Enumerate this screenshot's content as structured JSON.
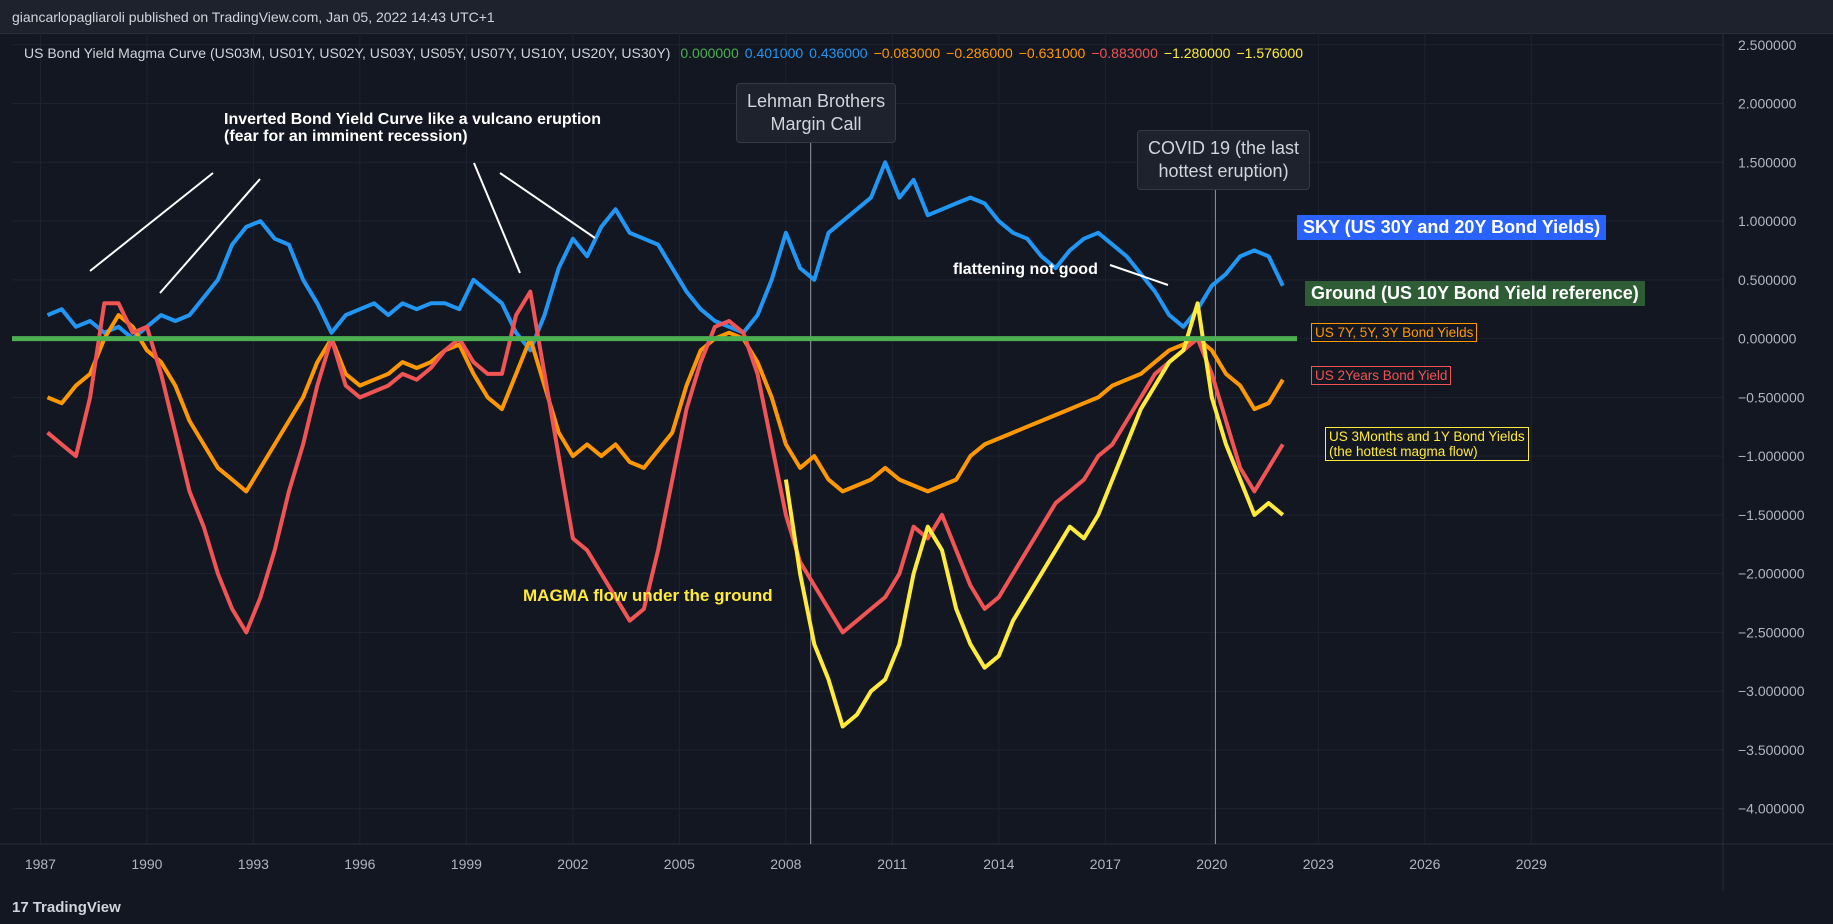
{
  "publisher": "giancarlopagliaroli published on TradingView.com, Jan 05, 2022 14:43 UTC+1",
  "footer": {
    "logo_mark": "17",
    "logo_text": "TradingView"
  },
  "legend": {
    "title": "US Bond Yield Magma Curve (US03M, US01Y, US02Y, US03Y, US05Y, US07Y, US10Y, US20Y, US30Y)",
    "values": [
      {
        "text": "0.000000",
        "color": "#4caf50"
      },
      {
        "text": "0.401000",
        "color": "#2196f3"
      },
      {
        "text": "0.436000",
        "color": "#2196f3"
      },
      {
        "text": "−0.083000",
        "color": "#ff9800"
      },
      {
        "text": "−0.286000",
        "color": "#ff9800"
      },
      {
        "text": "−0.631000",
        "color": "#ff9800"
      },
      {
        "text": "−0.883000",
        "color": "#f05454"
      },
      {
        "text": "−1.280000",
        "color": "#ffeb3b"
      },
      {
        "text": "−1.576000",
        "color": "#ffeb3b"
      }
    ]
  },
  "annotations": {
    "inverted": "Inverted Bond Yield Curve like a vulcano eruption",
    "inverted_sub": "(fear for an imminent recession)",
    "lehman_1": "Lehman Brothers",
    "lehman_2": "Margin Call",
    "covid_1": "COVID 19 (the last",
    "covid_2": "hottest eruption)",
    "flattening": "flattening not good",
    "magma": "MAGMA flow under the ground",
    "sky": "SKY (US 30Y and 20Y Bond Yields)",
    "ground": "Ground (US 10Y Bond Yield reference)",
    "mid_yields": "US 7Y, 5Y, 3Y Bond Yields",
    "two_year": "US 2Years Bond Yield",
    "short_1": "US 3Months and 1Y Bond Yields",
    "short_2": "(the hottest magma flow)"
  },
  "chart_data": {
    "type": "line",
    "x_ticks": [
      "1987",
      "1990",
      "1993",
      "1996",
      "1999",
      "2002",
      "2005",
      "2008",
      "2011",
      "2014",
      "2017",
      "2020",
      "2023",
      "2026",
      "2029"
    ],
    "y_ticks": [
      "2.500000",
      "2.000000",
      "1.500000",
      "1.000000",
      "0.500000",
      "0.000000",
      "−0.500000",
      "−1.000000",
      "−1.500000",
      "−2.000000",
      "−2.500000",
      "−3.000000",
      "−3.500000",
      "−4.000000"
    ],
    "xlim": [
      1986.2,
      2034.4
    ],
    "ylim": [
      -4.3,
      2.6
    ],
    "vlines": [
      2008.7,
      2020.1
    ],
    "series": [
      {
        "name": "SKY (US 30Y and 20Y Bond Yields)",
        "color": "#2196f3",
        "x": [
          1987.2,
          1987.6,
          1988,
          1988.4,
          1988.8,
          1989.2,
          1989.6,
          1990,
          1990.4,
          1990.8,
          1991.2,
          1991.6,
          1992,
          1992.4,
          1992.8,
          1993.2,
          1993.6,
          1994,
          1994.4,
          1994.8,
          1995.2,
          1995.6,
          1996,
          1996.4,
          1996.8,
          1997.2,
          1997.6,
          1998,
          1998.4,
          1998.8,
          1999.2,
          1999.6,
          2000,
          2000.4,
          2000.8,
          2001.2,
          2001.6,
          2002,
          2002.4,
          2002.8,
          2003.2,
          2003.6,
          2004,
          2004.4,
          2004.8,
          2005.2,
          2005.6,
          2006,
          2006.4,
          2006.8,
          2007.2,
          2007.6,
          2008,
          2008.4,
          2008.8,
          2009.2,
          2009.6,
          2010,
          2010.4,
          2010.8,
          2011.2,
          2011.6,
          2012,
          2012.4,
          2012.8,
          2013.2,
          2013.6,
          2014,
          2014.4,
          2014.8,
          2015.2,
          2015.6,
          2016,
          2016.4,
          2016.8,
          2017.2,
          2017.6,
          2018,
          2018.4,
          2018.8,
          2019.2,
          2019.6,
          2020,
          2020.4,
          2020.8,
          2021.2,
          2021.6,
          2022
        ],
        "y": [
          0.2,
          0.25,
          0.1,
          0.15,
          0.05,
          0.1,
          0.0,
          0.1,
          0.2,
          0.15,
          0.2,
          0.35,
          0.5,
          0.8,
          0.95,
          1.0,
          0.85,
          0.8,
          0.5,
          0.3,
          0.05,
          0.2,
          0.25,
          0.3,
          0.2,
          0.3,
          0.25,
          0.3,
          0.3,
          0.25,
          0.5,
          0.4,
          0.3,
          0.05,
          -0.1,
          0.2,
          0.6,
          0.85,
          0.7,
          0.95,
          1.1,
          0.9,
          0.85,
          0.8,
          0.6,
          0.4,
          0.25,
          0.15,
          0.1,
          0.05,
          0.2,
          0.5,
          0.9,
          0.6,
          0.5,
          0.9,
          1.0,
          1.1,
          1.2,
          1.5,
          1.2,
          1.35,
          1.05,
          1.1,
          1.15,
          1.2,
          1.15,
          1.0,
          0.9,
          0.85,
          0.7,
          0.6,
          0.75,
          0.85,
          0.9,
          0.8,
          0.7,
          0.55,
          0.4,
          0.2,
          0.1,
          0.25,
          0.45,
          0.55,
          0.7,
          0.75,
          0.7,
          0.45
        ]
      },
      {
        "name": "US 7Y, 5Y, 3Y Bond Yields",
        "color": "#ff9800",
        "x": [
          1987.2,
          1987.6,
          1988,
          1988.4,
          1988.8,
          1989.2,
          1989.6,
          1990,
          1990.4,
          1990.8,
          1991.2,
          1991.6,
          1992,
          1992.4,
          1992.8,
          1993.2,
          1993.6,
          1994,
          1994.4,
          1994.8,
          1995.2,
          1995.6,
          1996,
          1996.4,
          1996.8,
          1997.2,
          1997.6,
          1998,
          1998.4,
          1998.8,
          1999.2,
          1999.6,
          2000,
          2000.4,
          2000.8,
          2001.2,
          2001.6,
          2002,
          2002.4,
          2002.8,
          2003.2,
          2003.6,
          2004,
          2004.4,
          2004.8,
          2005.2,
          2005.6,
          2006,
          2006.4,
          2006.8,
          2007.2,
          2007.6,
          2008,
          2008.4,
          2008.8,
          2009.2,
          2009.6,
          2010,
          2010.4,
          2010.8,
          2011.2,
          2011.6,
          2012,
          2012.4,
          2012.8,
          2013.2,
          2013.6,
          2014,
          2014.4,
          2014.8,
          2015.2,
          2015.6,
          2016,
          2016.4,
          2016.8,
          2017.2,
          2017.6,
          2018,
          2018.4,
          2018.8,
          2019.2,
          2019.6,
          2020,
          2020.4,
          2020.8,
          2021.2,
          2021.6,
          2022
        ],
        "y": [
          -0.5,
          -0.55,
          -0.4,
          -0.3,
          0.0,
          0.2,
          0.1,
          -0.1,
          -0.2,
          -0.4,
          -0.7,
          -0.9,
          -1.1,
          -1.2,
          -1.3,
          -1.1,
          -0.9,
          -0.7,
          -0.5,
          -0.2,
          0.0,
          -0.3,
          -0.4,
          -0.35,
          -0.3,
          -0.2,
          -0.25,
          -0.2,
          -0.1,
          -0.05,
          -0.3,
          -0.5,
          -0.6,
          -0.3,
          0.0,
          -0.4,
          -0.8,
          -1.0,
          -0.9,
          -1.0,
          -0.9,
          -1.05,
          -1.1,
          -0.95,
          -0.8,
          -0.4,
          -0.1,
          0.0,
          0.05,
          0.0,
          -0.2,
          -0.5,
          -0.9,
          -1.1,
          -1.0,
          -1.2,
          -1.3,
          -1.25,
          -1.2,
          -1.1,
          -1.2,
          -1.25,
          -1.3,
          -1.25,
          -1.2,
          -1.0,
          -0.9,
          -0.85,
          -0.8,
          -0.75,
          -0.7,
          -0.65,
          -0.6,
          -0.55,
          -0.5,
          -0.4,
          -0.35,
          -0.3,
          -0.2,
          -0.1,
          -0.05,
          0.0,
          -0.1,
          -0.3,
          -0.4,
          -0.6,
          -0.55,
          -0.35
        ]
      },
      {
        "name": "US 2Years Bond Yield",
        "color": "#f05454",
        "x": [
          1987.2,
          1987.6,
          1988,
          1988.4,
          1988.8,
          1989.2,
          1989.6,
          1990,
          1990.4,
          1990.8,
          1991.2,
          1991.6,
          1992,
          1992.4,
          1992.8,
          1993.2,
          1993.6,
          1994,
          1994.4,
          1994.8,
          1995.2,
          1995.6,
          1996,
          1996.4,
          1996.8,
          1997.2,
          1997.6,
          1998,
          1998.4,
          1998.8,
          1999.2,
          1999.6,
          2000,
          2000.4,
          2000.8,
          2001.2,
          2001.6,
          2002,
          2002.4,
          2002.8,
          2003.2,
          2003.6,
          2004,
          2004.4,
          2004.8,
          2005.2,
          2005.6,
          2006,
          2006.4,
          2006.8,
          2007.2,
          2007.6,
          2008,
          2008.4,
          2008.8,
          2009.2,
          2009.6,
          2010,
          2010.4,
          2010.8,
          2011.2,
          2011.6,
          2012,
          2012.4,
          2012.8,
          2013.2,
          2013.6,
          2014,
          2014.4,
          2014.8,
          2015.2,
          2015.6,
          2016,
          2016.4,
          2016.8,
          2017.2,
          2017.6,
          2018,
          2018.4,
          2018.8,
          2019.2,
          2019.6,
          2020,
          2020.4,
          2020.8,
          2021.2,
          2021.6,
          2022
        ],
        "y": [
          -0.8,
          -0.9,
          -1.0,
          -0.5,
          0.3,
          0.3,
          0.05,
          0.1,
          -0.3,
          -0.8,
          -1.3,
          -1.6,
          -2.0,
          -2.3,
          -2.5,
          -2.2,
          -1.8,
          -1.3,
          -0.9,
          -0.4,
          0.0,
          -0.4,
          -0.5,
          -0.45,
          -0.4,
          -0.3,
          -0.35,
          -0.25,
          -0.1,
          0.0,
          -0.2,
          -0.3,
          -0.3,
          0.2,
          0.4,
          -0.3,
          -1.0,
          -1.7,
          -1.8,
          -2.0,
          -2.2,
          -2.4,
          -2.3,
          -1.8,
          -1.2,
          -0.6,
          -0.2,
          0.1,
          0.15,
          0.05,
          -0.3,
          -0.9,
          -1.5,
          -1.9,
          -2.1,
          -2.3,
          -2.5,
          -2.4,
          -2.3,
          -2.2,
          -2.0,
          -1.6,
          -1.7,
          -1.5,
          -1.8,
          -2.1,
          -2.3,
          -2.2,
          -2.0,
          -1.8,
          -1.6,
          -1.4,
          -1.3,
          -1.2,
          -1.0,
          -0.9,
          -0.7,
          -0.5,
          -0.3,
          -0.2,
          -0.1,
          0.0,
          -0.3,
          -0.7,
          -1.1,
          -1.3,
          -1.1,
          -0.9
        ]
      },
      {
        "name": "US 3Months and 1Y Bond Yields",
        "color": "#ffeb3b",
        "x": [
          2008,
          2008.4,
          2008.8,
          2009.2,
          2009.6,
          2010,
          2010.4,
          2010.8,
          2011.2,
          2011.6,
          2012,
          2012.4,
          2012.8,
          2013.2,
          2013.6,
          2014,
          2014.4,
          2014.8,
          2015.2,
          2015.6,
          2016,
          2016.4,
          2016.8,
          2017.2,
          2017.6,
          2018,
          2018.4,
          2018.8,
          2019.2,
          2019.6,
          2020,
          2020.4,
          2020.8,
          2021.2,
          2021.6,
          2022
        ],
        "y": [
          -1.2,
          -2.0,
          -2.6,
          -2.9,
          -3.3,
          -3.2,
          -3.0,
          -2.9,
          -2.6,
          -2.0,
          -1.6,
          -1.8,
          -2.3,
          -2.6,
          -2.8,
          -2.7,
          -2.4,
          -2.2,
          -2.0,
          -1.8,
          -1.6,
          -1.7,
          -1.5,
          -1.2,
          -0.9,
          -0.6,
          -0.4,
          -0.2,
          -0.1,
          0.3,
          -0.5,
          -0.9,
          -1.2,
          -1.5,
          -1.4,
          -1.5
        ]
      }
    ]
  }
}
